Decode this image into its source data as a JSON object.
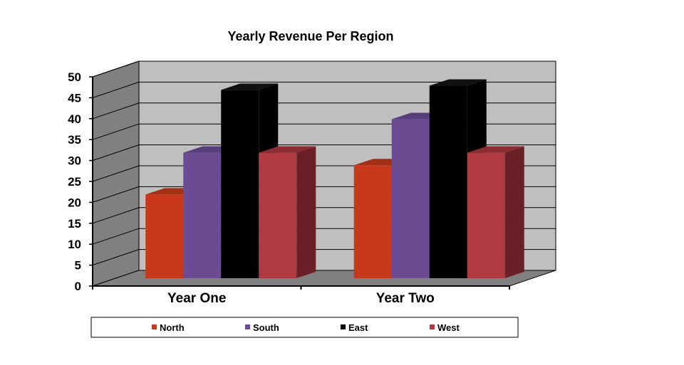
{
  "chart_data": {
    "type": "bar",
    "title": "Yearly Revenue Per Region",
    "categories": [
      "Year One",
      "Year Two"
    ],
    "series": [
      {
        "name": "North",
        "values": [
          20,
          27
        ],
        "color": "#c8381a",
        "side": "#8e2712",
        "top": "#a33015"
      },
      {
        "name": "South",
        "values": [
          30,
          38
        ],
        "color": "#6b4c93",
        "side": "#4a3366",
        "top": "#583e7a"
      },
      {
        "name": "East",
        "values": [
          45,
          46
        ],
        "color": "#000000",
        "side": "#000000",
        "top": "#111111"
      },
      {
        "name": "West",
        "values": [
          30,
          30
        ],
        "color": "#b03a40",
        "side": "#6b2027",
        "top": "#8c2d33"
      }
    ],
    "ylim": [
      0,
      50
    ],
    "yticks": [
      0,
      5,
      10,
      15,
      20,
      25,
      30,
      35,
      40,
      45,
      50
    ],
    "grid": true,
    "legend_position": "bottom",
    "colors": {
      "back_wall": "#bfbfbf",
      "side_wall": "#808080",
      "floor": "#808080",
      "gridline": "#000000"
    }
  }
}
